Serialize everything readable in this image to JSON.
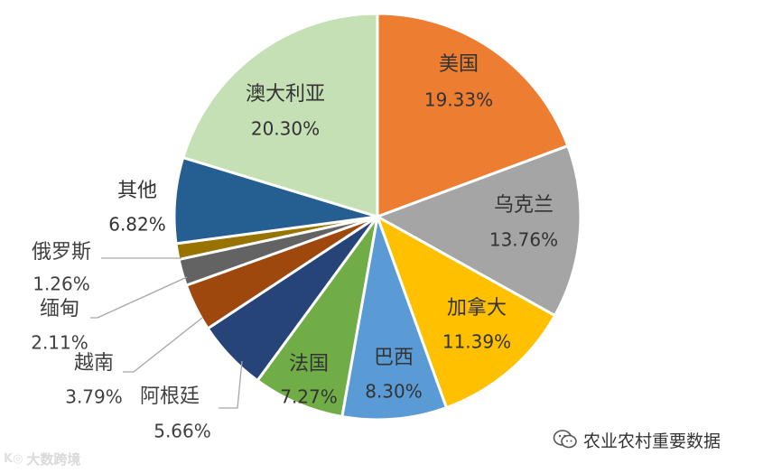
{
  "chart_data": {
    "type": "pie",
    "title": "",
    "slices": [
      {
        "label": "美国",
        "value_label": "19.33%",
        "value": 19.33,
        "color": "#ED7D31",
        "label_inside": true,
        "label_color": "#333333"
      },
      {
        "label": "乌克兰",
        "value_label": "13.76%",
        "value": 13.76,
        "color": "#A5A5A5",
        "label_inside": true,
        "label_color": "#333333"
      },
      {
        "label": "加拿大",
        "value_label": "11.39%",
        "value": 11.39,
        "color": "#FFC000",
        "label_inside": true,
        "label_color": "#333333"
      },
      {
        "label": "巴西",
        "value_label": "8.30%",
        "value": 8.3,
        "color": "#5B9BD5",
        "label_inside": true,
        "label_color": "#333333"
      },
      {
        "label": "法国",
        "value_label": "7.27%",
        "value": 7.27,
        "color": "#70AD47",
        "label_inside": true,
        "label_color": "#333333"
      },
      {
        "label": "阿根廷",
        "value_label": "5.66%",
        "value": 5.66,
        "color": "#264478",
        "label_inside": false,
        "label_color": "#404040"
      },
      {
        "label": "越南",
        "value_label": "3.79%",
        "value": 3.79,
        "color": "#9E480E",
        "label_inside": false,
        "label_color": "#404040"
      },
      {
        "label": "缅甸",
        "value_label": "2.11%",
        "value": 2.11,
        "color": "#636363",
        "label_inside": false,
        "label_color": "#404040"
      },
      {
        "label": "俄罗斯",
        "value_label": "1.26%",
        "value": 1.26,
        "color": "#997300",
        "label_inside": false,
        "label_color": "#404040"
      },
      {
        "label": "其他",
        "value_label": "6.82%",
        "value": 6.82,
        "color": "#255E91",
        "label_inside": true,
        "label_color": "#333333"
      },
      {
        "label": "澳大利亚",
        "value_label": "20.30%",
        "value": 20.3,
        "color": "#C5E0B4",
        "label_inside": true,
        "label_color": "#333333"
      }
    ],
    "start": "12 o'clock",
    "direction": "clockwise",
    "legend": "none",
    "leader_line_color": "#A6A6A6"
  },
  "watermarks": {
    "wechat_account": "农业农村重要数据",
    "wechat_icon": "wechat-icon",
    "logo_text": "大数跨境",
    "logo_mark": "K◎"
  }
}
